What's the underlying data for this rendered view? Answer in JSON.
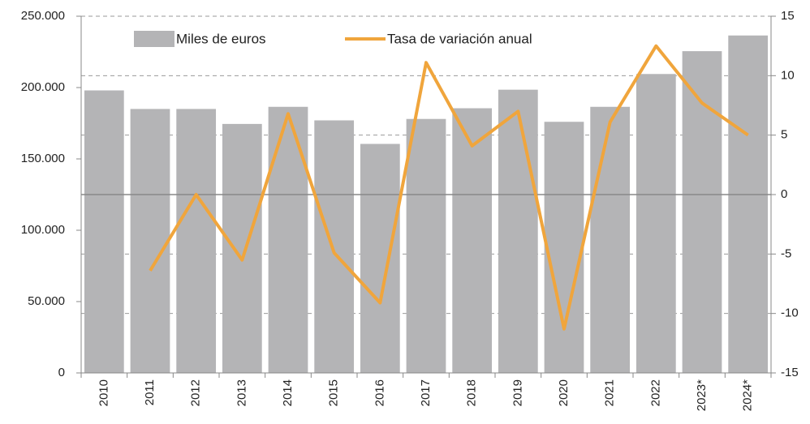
{
  "chart_data": {
    "type": "bar_line",
    "categories": [
      "2010",
      "2011",
      "2012",
      "2013",
      "2014",
      "2015",
      "2016",
      "2017",
      "2018",
      "2019",
      "2020",
      "2021",
      "2022",
      "2023*",
      "2024*"
    ],
    "series": [
      {
        "name": "Miles de euros",
        "type": "bar",
        "color": "#b4b4b6",
        "axis": "y",
        "values": [
          198000,
          185000,
          185000,
          174500,
          186500,
          177000,
          160500,
          178000,
          185500,
          198500,
          176000,
          186500,
          209500,
          225500,
          236500
        ]
      },
      {
        "name": "Tasa de variación anual",
        "type": "line",
        "color": "#f0a53c",
        "axis": "y2",
        "values": [
          null,
          -6.4,
          0,
          -5.5,
          6.8,
          -4.9,
          -9.1,
          11.1,
          4.1,
          7.0,
          -11.3,
          6.1,
          12.5,
          7.7,
          5.0
        ]
      }
    ],
    "ylim": [
      0,
      250000
    ],
    "yticks": [
      0,
      {
        "value": 50000,
        "label": "50.000"
      },
      {
        "value": 100000,
        "label": "100.000"
      },
      {
        "value": 150000,
        "label": "150.000"
      },
      {
        "value": 200000,
        "label": "200.000"
      },
      {
        "value": 250000,
        "label": "250.000"
      }
    ],
    "y2lim": [
      -15,
      15
    ],
    "y2ticks": [
      -15,
      -10,
      -5,
      0,
      5,
      10,
      15
    ],
    "grid": true
  }
}
